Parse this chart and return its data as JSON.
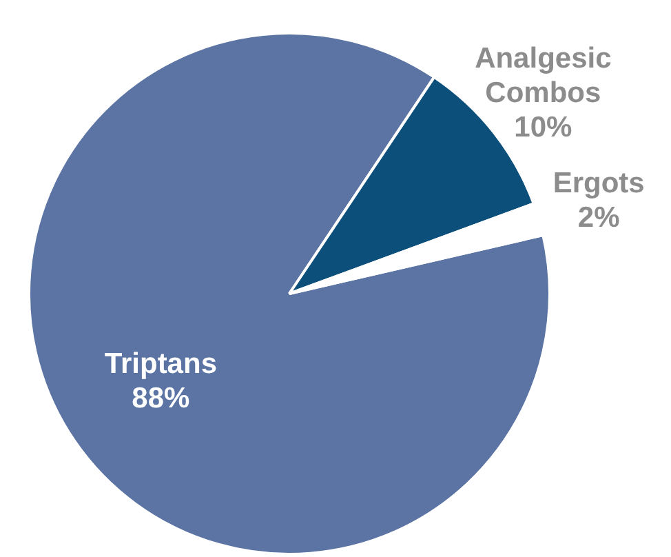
{
  "chart_data": {
    "type": "pie",
    "categories": [
      "Triptans",
      "Analgesic Combos",
      "Ergots"
    ],
    "values": [
      88,
      10,
      2
    ],
    "colors": [
      "#5b74a4",
      "#0b4f7a",
      "#ffffff"
    ],
    "value_labels": [
      "88%",
      "10%",
      "2%"
    ],
    "legend": false
  }
}
